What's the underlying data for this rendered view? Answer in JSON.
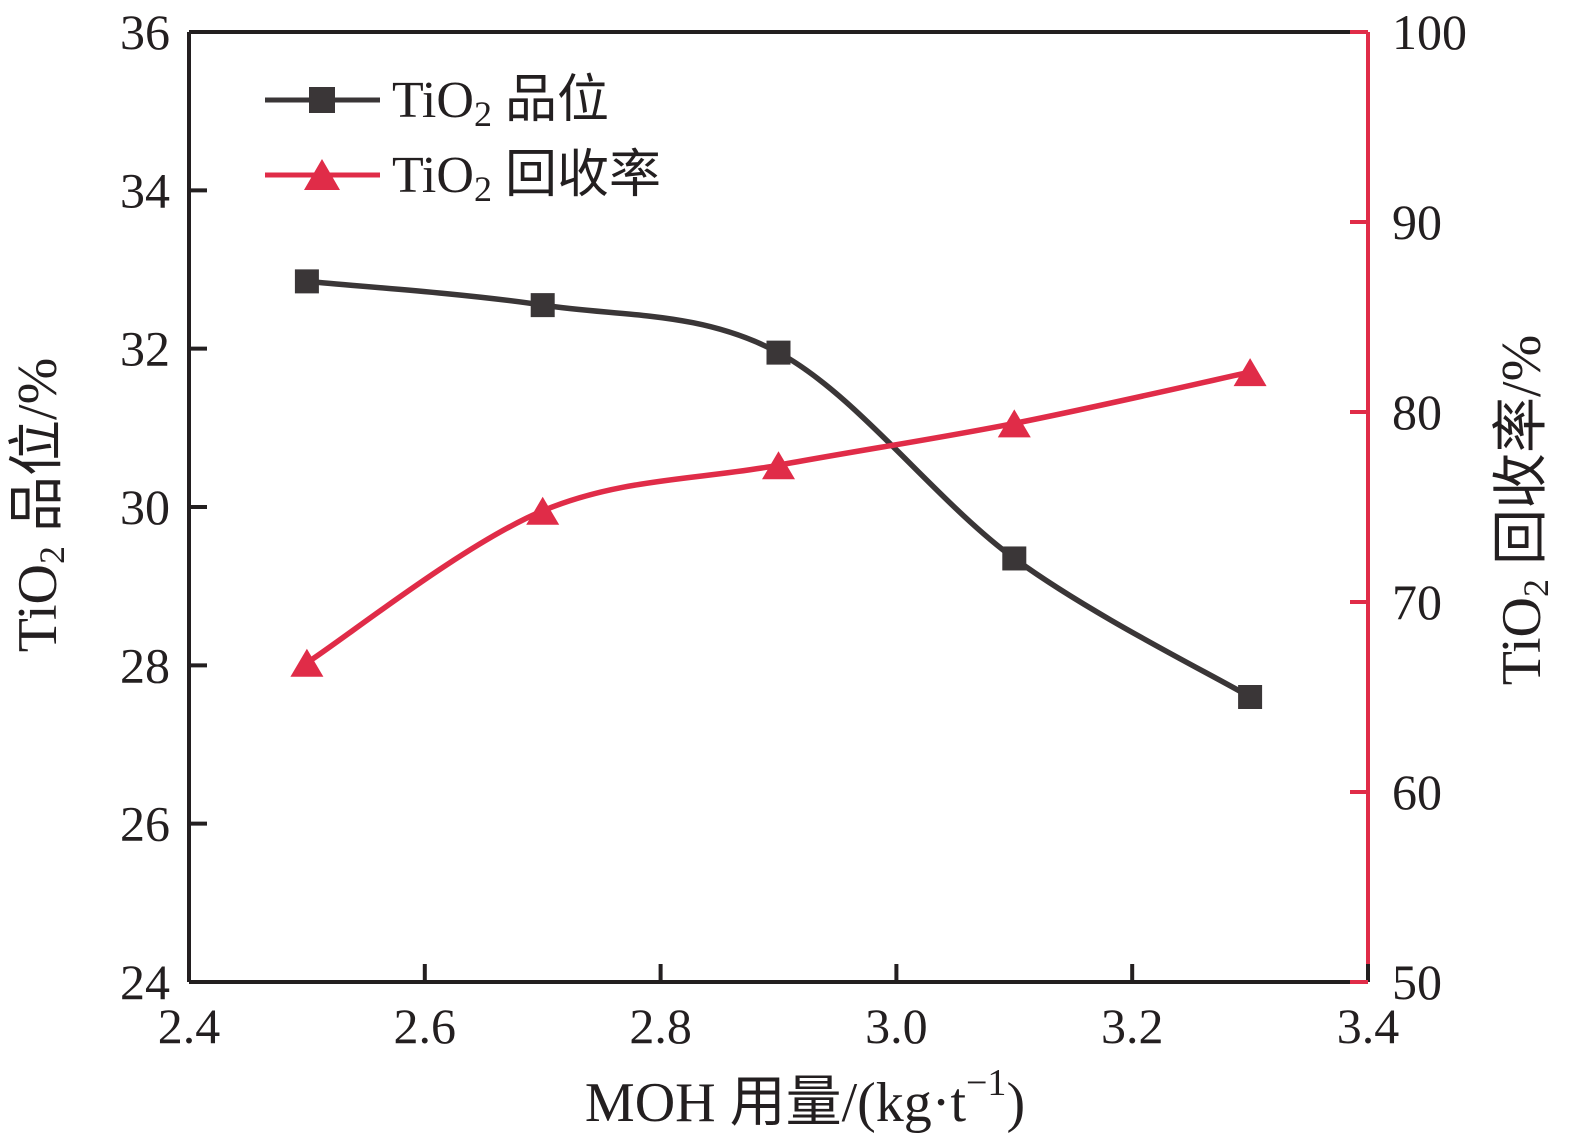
{
  "figure": {
    "background": "#ffffff",
    "colors": {
      "grade_series": "#3a3637",
      "recovery_series": "#e02c48",
      "axis_black": "#231f20",
      "axis_red": "#e02c48"
    }
  },
  "legend": {
    "items": [
      {
        "marker": "square",
        "color": "#3a3637",
        "label_pre": "TiO",
        "label_sub": "2",
        "label_post": " 品位"
      },
      {
        "marker": "triangle",
        "color": "#e02c48",
        "label_pre": "TiO",
        "label_sub": "2",
        "label_post": " 回收率"
      }
    ]
  },
  "titles": {
    "x_axis": {
      "pre": "MOH 用量/(kg·t",
      "sup": "−1",
      "post": ")"
    },
    "left_axis": {
      "pre": "TiO",
      "sub": "2",
      "post": " 品位/%"
    },
    "right_axis": {
      "pre": "TiO",
      "sub": "2",
      "post": " 回收率/%"
    }
  },
  "chart_data": {
    "type": "line",
    "title": "",
    "x": [
      2.5,
      2.7,
      2.9,
      3.1,
      3.3
    ],
    "series": [
      {
        "name": "TiO₂ 品位",
        "axis": "left",
        "marker": "square",
        "color": "#3a3637",
        "values": [
          32.85,
          32.55,
          31.95,
          29.35,
          27.6
        ]
      },
      {
        "name": "TiO₂ 回收率",
        "axis": "right",
        "marker": "triangle",
        "color": "#e02c48",
        "values": [
          66.8,
          74.8,
          77.2,
          79.4,
          82.1
        ]
      }
    ],
    "x_axis": {
      "label": "MOH 用量/(kg·t⁻¹)",
      "range": [
        2.4,
        3.4
      ],
      "ticks": [
        2.4,
        2.6,
        2.8,
        3.0,
        3.2,
        3.4
      ],
      "tick_labels": [
        "2.4",
        "2.6",
        "2.8",
        "3.0",
        "3.2",
        "3.4"
      ]
    },
    "left_axis": {
      "label": "TiO₂ 品位/%",
      "range": [
        24,
        36
      ],
      "ticks": [
        24,
        26,
        28,
        30,
        32,
        34,
        36
      ],
      "tick_labels": [
        "24",
        "26",
        "28",
        "30",
        "32",
        "34",
        "36"
      ],
      "color": "#231f20"
    },
    "right_axis": {
      "label": "TiO₂ 回收率/%",
      "range": [
        50,
        100
      ],
      "ticks": [
        50,
        60,
        70,
        80,
        90,
        100
      ],
      "tick_labels": [
        "50",
        "60",
        "70",
        "80",
        "90",
        "100"
      ],
      "color": "#e02c48"
    },
    "grid": false,
    "legend_position": "inside-top-left",
    "curve_style": "smooth"
  }
}
